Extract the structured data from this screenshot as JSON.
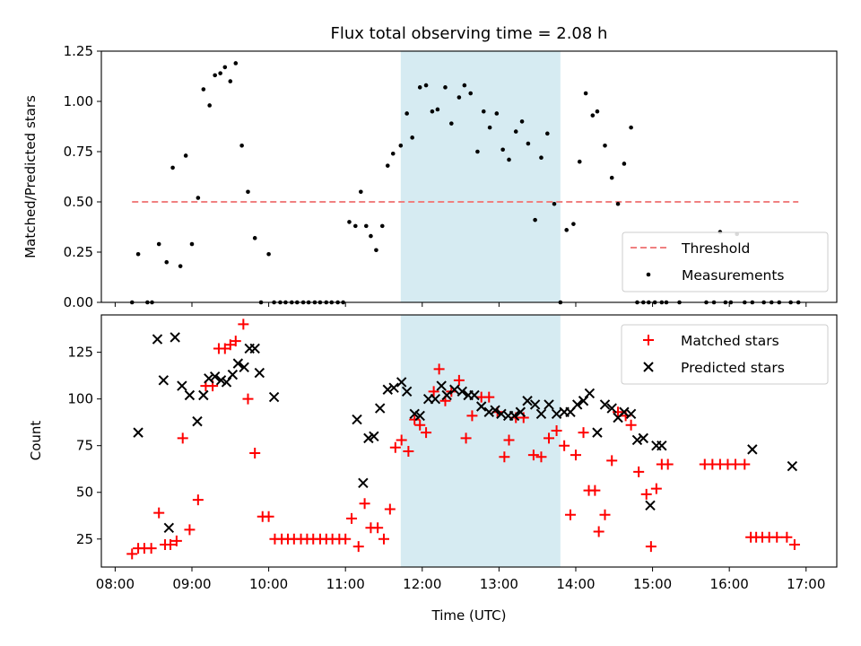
{
  "chart_data": [
    {
      "type": "scatter",
      "title": "Flux total observing time = 2.08 h",
      "xlabel": "",
      "ylabel": "Matched/Predicted stars",
      "xlim_hours": [
        7.82,
        17.4
      ],
      "ylim": [
        0,
        1.25
      ],
      "yticks": [
        0,
        0.25,
        0.5,
        0.75,
        1.0,
        1.25
      ],
      "ytick_labels": [
        "0.00",
        "0.25",
        "0.50",
        "0.75",
        "1.00",
        "1.25"
      ],
      "shaded_interval_hours": [
        11.72,
        13.8
      ],
      "threshold": {
        "name": "Threshold",
        "value": 0.5,
        "x_range": [
          8.22,
          16.9
        ],
        "color": "#f08080"
      },
      "legend": {
        "position": "lower right",
        "entries": [
          "Threshold",
          "Measurements"
        ]
      },
      "series": [
        {
          "name": "Measurements",
          "color": "#000000",
          "x": [
            8.22,
            8.3,
            8.42,
            8.48,
            8.57,
            8.67,
            8.75,
            8.85,
            8.92,
            9.0,
            9.08,
            9.15,
            9.23,
            9.3,
            9.37,
            9.43,
            9.5,
            9.57,
            9.65,
            9.73,
            9.82,
            9.9,
            10.0,
            10.07,
            10.15,
            10.22,
            10.3,
            10.37,
            10.45,
            10.52,
            10.6,
            10.67,
            10.75,
            10.82,
            10.9,
            10.97,
            11.05,
            11.13,
            11.2,
            11.27,
            11.33,
            11.4,
            11.48,
            11.55,
            11.62,
            11.72,
            11.8,
            11.87,
            11.97,
            12.05,
            12.13,
            12.2,
            12.3,
            12.38,
            12.48,
            12.55,
            12.63,
            12.72,
            12.8,
            12.88,
            12.97,
            13.05,
            13.13,
            13.22,
            13.3,
            13.38,
            13.47,
            13.55,
            13.63,
            13.72,
            13.8,
            13.88,
            13.97,
            14.05,
            14.13,
            14.22,
            14.28,
            14.38,
            14.47,
            14.55,
            14.63,
            14.72,
            14.8,
            14.88,
            14.95,
            15.03,
            15.12,
            15.18,
            15.35,
            15.7,
            15.8,
            15.88,
            15.95,
            16.02,
            16.1,
            16.2,
            16.3,
            16.45,
            16.55,
            16.65,
            16.8,
            16.9
          ],
          "y": [
            0.0,
            0.24,
            0.0,
            0.0,
            0.29,
            0.2,
            0.67,
            0.18,
            0.73,
            0.29,
            0.52,
            1.06,
            0.98,
            1.13,
            1.14,
            1.17,
            1.1,
            1.19,
            0.78,
            0.55,
            0.32,
            0.0,
            0.24,
            0.0,
            0.0,
            0.0,
            0.0,
            0.0,
            0.0,
            0.0,
            0.0,
            0.0,
            0.0,
            0.0,
            0.0,
            0.0,
            0.4,
            0.38,
            0.55,
            0.38,
            0.33,
            0.26,
            0.38,
            0.68,
            0.74,
            0.78,
            0.94,
            0.82,
            1.07,
            1.08,
            0.95,
            0.96,
            1.07,
            0.89,
            1.02,
            1.08,
            1.04,
            0.75,
            0.95,
            0.87,
            0.94,
            0.76,
            0.71,
            0.85,
            0.9,
            0.79,
            0.41,
            0.72,
            0.84,
            0.49,
            0.0,
            0.36,
            0.39,
            0.7,
            1.04,
            0.93,
            0.95,
            0.78,
            0.62,
            0.49,
            0.69,
            0.87,
            0.0,
            0.0,
            0.0,
            0.0,
            0.0,
            0.0,
            0.0,
            0.0,
            0.0,
            0.35,
            0.0,
            0.0,
            0.34,
            0.0,
            0.0,
            0.0,
            0.0,
            0.0,
            0.0,
            0.0
          ]
        }
      ]
    },
    {
      "type": "scatter",
      "title": "",
      "xlabel": "Time (UTC)",
      "ylabel": "Count",
      "xlim_hours": [
        7.82,
        17.4
      ],
      "ylim": [
        10,
        145
      ],
      "yticks": [
        25,
        50,
        75,
        100,
        125
      ],
      "ytick_labels": [
        "25",
        "50",
        "75",
        "100",
        "125"
      ],
      "xticks_hours": [
        8,
        9,
        10,
        11,
        12,
        13,
        14,
        15,
        16,
        17
      ],
      "xtick_labels": [
        "08:00",
        "09:00",
        "10:00",
        "11:00",
        "12:00",
        "13:00",
        "14:00",
        "15:00",
        "16:00",
        "17:00"
      ],
      "shaded_interval_hours": [
        11.72,
        13.8
      ],
      "legend": {
        "position": "upper right",
        "entries": [
          "Matched stars",
          "Predicted stars"
        ]
      },
      "series": [
        {
          "name": "Matched stars",
          "marker": "plus",
          "color": "#ff0000",
          "x": [
            8.22,
            8.3,
            8.38,
            8.47,
            8.57,
            8.65,
            8.72,
            8.8,
            8.88,
            8.97,
            9.08,
            9.18,
            9.27,
            9.35,
            9.43,
            9.5,
            9.57,
            9.67,
            9.73,
            9.82,
            9.92,
            10.0,
            10.08,
            10.17,
            10.25,
            10.33,
            10.42,
            10.5,
            10.58,
            10.67,
            10.75,
            10.83,
            10.92,
            11.0,
            11.08,
            11.17,
            11.25,
            11.33,
            11.42,
            11.5,
            11.58,
            11.65,
            11.73,
            11.82,
            11.9,
            11.97,
            12.05,
            12.15,
            12.22,
            12.3,
            12.38,
            12.48,
            12.57,
            12.65,
            12.77,
            12.87,
            12.98,
            13.07,
            13.13,
            13.22,
            13.32,
            13.45,
            13.55,
            13.65,
            13.75,
            13.85,
            13.93,
            14.0,
            14.1,
            14.17,
            14.25,
            14.3,
            14.38,
            14.47,
            14.55,
            14.65,
            14.72,
            14.82,
            14.92,
            14.98,
            15.05,
            15.12,
            15.2,
            15.68,
            15.78,
            15.88,
            15.98,
            16.08,
            16.2,
            16.28,
            16.35,
            16.43,
            16.52,
            16.62,
            16.75,
            16.85
          ],
          "y": [
            17,
            20,
            20,
            20,
            39,
            22,
            22,
            24,
            79,
            30,
            46,
            107,
            107,
            127,
            127,
            129,
            131,
            140,
            100,
            71,
            37,
            37,
            25,
            25,
            25,
            25,
            25,
            25,
            25,
            25,
            25,
            25,
            25,
            25,
            36,
            21,
            44,
            31,
            31,
            25,
            41,
            74,
            78,
            72,
            89,
            86,
            82,
            104,
            116,
            99,
            104,
            110,
            79,
            91,
            101,
            101,
            93,
            69,
            78,
            90,
            90,
            70,
            69,
            79,
            83,
            75,
            38,
            70,
            82,
            51,
            51,
            29,
            38,
            67,
            93,
            91,
            86,
            61,
            49,
            21,
            52,
            65,
            65,
            65,
            65,
            65,
            65,
            65,
            65,
            26,
            26,
            26,
            26,
            26,
            26,
            22
          ]
        },
        {
          "name": "Predicted stars",
          "marker": "x",
          "color": "#000000",
          "x": [
            8.3,
            8.55,
            8.63,
            8.7,
            8.78,
            8.87,
            8.97,
            9.07,
            9.15,
            9.22,
            9.3,
            9.38,
            9.45,
            9.53,
            9.6,
            9.68,
            9.75,
            9.82,
            9.88,
            10.07,
            11.15,
            11.23,
            11.3,
            11.37,
            11.45,
            11.55,
            11.63,
            11.73,
            11.8,
            11.9,
            11.97,
            12.08,
            12.17,
            12.25,
            12.32,
            12.42,
            12.52,
            12.6,
            12.68,
            12.77,
            12.87,
            12.95,
            13.03,
            13.12,
            13.2,
            13.28,
            13.37,
            13.47,
            13.55,
            13.65,
            13.75,
            13.85,
            13.93,
            14.02,
            14.1,
            14.18,
            14.28,
            14.38,
            14.47,
            14.55,
            14.63,
            14.72,
            14.8,
            14.88,
            14.97,
            15.05,
            15.12,
            16.3,
            16.82
          ],
          "y": [
            82,
            132,
            110,
            31,
            133,
            107,
            102,
            88,
            102,
            111,
            112,
            110,
            109,
            113,
            119,
            117,
            127,
            127,
            114,
            101,
            89,
            55,
            79,
            80,
            95,
            105,
            106,
            109,
            104,
            92,
            91,
            100,
            100,
            107,
            102,
            105,
            104,
            102,
            102,
            96,
            93,
            94,
            92,
            91,
            91,
            93,
            99,
            97,
            92,
            97,
            92,
            93,
            93,
            97,
            99,
            103,
            82,
            97,
            95,
            90,
            93,
            92,
            78,
            79,
            43,
            75,
            75,
            73,
            64
          ]
        }
      ]
    }
  ]
}
